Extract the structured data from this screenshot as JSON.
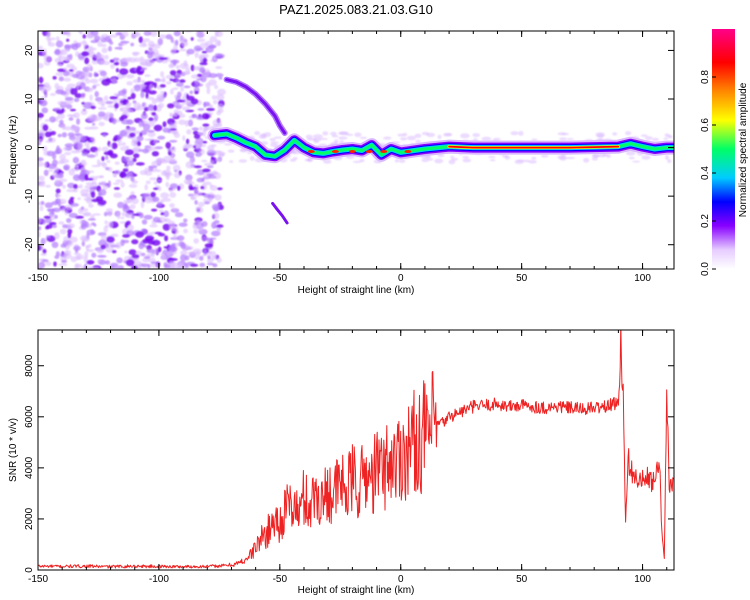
{
  "title": "PAZ1.2025.083.21.03.G10",
  "chart_data": [
    {
      "type": "heatmap",
      "xlabel": "Height of straight line (km)",
      "ylabel": "Frequency (Hz)",
      "xlim": [
        -150,
        113
      ],
      "ylim": [
        -25,
        24
      ],
      "xticks": [
        -150,
        -100,
        -50,
        0,
        50,
        100
      ],
      "xtick_labels": [
        "-150",
        "-100",
        "-50",
        "0",
        "50",
        "100"
      ],
      "yticks": [
        20,
        10,
        0,
        -10,
        -20
      ],
      "ytick_labels": [
        "20",
        "10",
        "0",
        "-10",
        "-20"
      ],
      "ridge": {
        "x": [
          -77,
          -72,
          -68,
          -64,
          -60,
          -56,
          -52,
          -48,
          -44,
          -40,
          -36,
          -32,
          -28,
          -24,
          -20,
          -16,
          -12,
          -8,
          -4,
          0,
          10,
          20,
          30,
          40,
          50,
          60,
          70,
          80,
          90,
          95,
          100,
          105,
          110,
          113
        ],
        "y": [
          2.5,
          2.8,
          2.0,
          1.0,
          0.2,
          -1.5,
          -1.8,
          -0.5,
          1.5,
          0.0,
          -1.0,
          -1.2,
          -0.8,
          -0.5,
          -0.3,
          -0.6,
          0.5,
          -1.5,
          -0.3,
          -1.0,
          -0.3,
          0.2,
          0.0,
          0.0,
          0.0,
          0.0,
          0.0,
          0.1,
          0.2,
          0.8,
          0.2,
          -0.3,
          0.0,
          0.0
        ]
      },
      "arc": {
        "x": [
          -72,
          -68,
          -64,
          -60,
          -56,
          -52,
          -50,
          -48
        ],
        "y": [
          14,
          13.5,
          12.5,
          11,
          9,
          6.5,
          4.5,
          3
        ]
      },
      "streak": {
        "x": [
          -53,
          -51,
          -49,
          -47
        ],
        "y": [
          -11.5,
          -12.8,
          -14,
          -15.5
        ]
      },
      "colorbar": {
        "label": "Normalized spectral amplitude",
        "ticks": [
          0.0,
          0.2,
          0.4,
          0.6,
          0.8
        ],
        "tick_labels": [
          "0.0",
          "0.2",
          "0.4",
          "0.6",
          "0.8"
        ],
        "range": [
          0,
          1
        ],
        "colors": [
          "#ffffff",
          "#e6ccff",
          "#8800ff",
          "#0000ff",
          "#00ccff",
          "#00ff66",
          "#ffff00",
          "#ff8800",
          "#ff0000",
          "#ff0088"
        ]
      }
    },
    {
      "type": "line",
      "xlabel": "Height of straight line (km)",
      "ylabel": "SNR (10 * v/v)",
      "xlim": [
        -150,
        113
      ],
      "ylim": [
        0,
        9400
      ],
      "xticks": [
        -150,
        -100,
        -50,
        0,
        50,
        100
      ],
      "xtick_labels": [
        "-150",
        "-100",
        "-50",
        "0",
        "50",
        "100"
      ],
      "yticks": [
        0,
        2000,
        4000,
        6000,
        8000
      ],
      "ytick_labels": [
        "0",
        "2000",
        "4000",
        "6000",
        "8000"
      ],
      "line_color": "#ee2222",
      "series": [
        {
          "x": [
            -150,
            -140,
            -130,
            -120,
            -110,
            -100,
            -90,
            -80,
            -75,
            -70,
            -66,
            -62,
            -58,
            -55,
            -52,
            -50,
            -48,
            -45,
            -42,
            -40,
            -38,
            -35,
            -32,
            -30,
            -28,
            -25,
            -22,
            -20,
            -17,
            -15,
            -12,
            -10,
            -7,
            -5,
            -2,
            0,
            3,
            5,
            8,
            10,
            13,
            15,
            18,
            20,
            25,
            30,
            35,
            40,
            45,
            50,
            55,
            60,
            65,
            70,
            75,
            80,
            85,
            88,
            90,
            91,
            92,
            93,
            94,
            95,
            96,
            97,
            98,
            100,
            102,
            104,
            106,
            107,
            108,
            109,
            110,
            111,
            112,
            113
          ],
          "y": [
            150,
            140,
            150,
            130,
            150,
            140,
            130,
            140,
            160,
            200,
            300,
            600,
            1200,
            1500,
            2000,
            1800,
            2300,
            2600,
            2200,
            2900,
            2500,
            3000,
            2700,
            3300,
            2900,
            3400,
            3100,
            3600,
            3200,
            3800,
            3500,
            4000,
            3900,
            4300,
            4200,
            4600,
            4700,
            5000,
            5100,
            5300,
            5500,
            5700,
            5800,
            6000,
            6200,
            6400,
            6450,
            6500,
            6400,
            6450,
            6400,
            6350,
            6400,
            6350,
            6300,
            6350,
            6400,
            6500,
            6600,
            9400,
            6600,
            2000,
            4400,
            4000,
            3800,
            3600,
            3500,
            3500,
            3600,
            3400,
            3800,
            4200,
            1500,
            500,
            6500,
            3500,
            3200,
            3400
          ]
        }
      ]
    }
  ]
}
